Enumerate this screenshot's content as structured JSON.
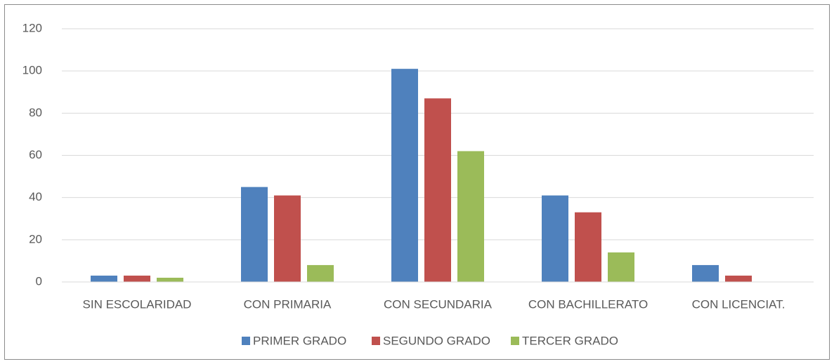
{
  "chart_data": {
    "type": "bar",
    "categories": [
      "SIN ESCOLARIDAD",
      "CON PRIMARIA",
      "CON SECUNDARIA",
      "CON BACHILLERATO",
      "CON LICENCIAT."
    ],
    "series": [
      {
        "name": "PRIMER GRADO",
        "color": "#4f81bd",
        "values": [
          3,
          45,
          101,
          41,
          8
        ]
      },
      {
        "name": "SEGUNDO GRADO",
        "color": "#c0504d",
        "values": [
          3,
          41,
          87,
          33,
          3
        ]
      },
      {
        "name": "TERCER GRADO",
        "color": "#9bbb59",
        "values": [
          2,
          8,
          62,
          14,
          0
        ]
      }
    ],
    "ylim": [
      0,
      120
    ],
    "yticks": [
      0,
      20,
      40,
      60,
      80,
      100,
      120
    ],
    "grid": true,
    "legend": "bottom"
  }
}
